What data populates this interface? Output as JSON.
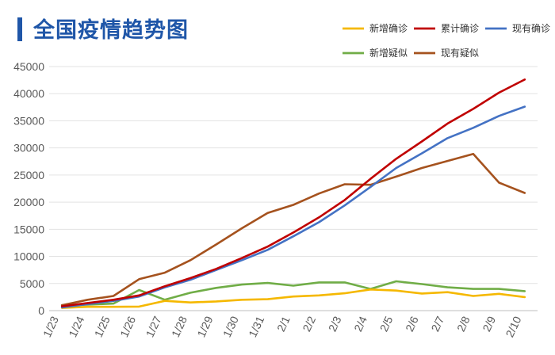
{
  "title": "全国疫情趋势图",
  "chart_data": {
    "type": "line",
    "title": "全国疫情趋势图",
    "categories": [
      "1/23",
      "1/24",
      "1/25",
      "1/26",
      "1/27",
      "1/28",
      "1/29",
      "1/30",
      "1/31",
      "2/1",
      "2/2",
      "2/3",
      "2/4",
      "2/5",
      "2/6",
      "2/7",
      "2/8",
      "2/9",
      "2/10"
    ],
    "ylim": [
      0,
      45000
    ],
    "yticks": [
      0,
      5000,
      10000,
      15000,
      20000,
      25000,
      30000,
      35000,
      40000,
      45000
    ],
    "grid": "horizontal",
    "legend_position": "top-right",
    "series": [
      {
        "name": "新增确诊",
        "color": "#f5b800",
        "values": [
          500,
          700,
          700,
          750,
          1800,
          1500,
          1700,
          2000,
          2100,
          2600,
          2800,
          3200,
          3900,
          3700,
          3150,
          3400,
          2700,
          3100,
          2500
        ]
      },
      {
        "name": "累计确诊",
        "color": "#c00000",
        "values": [
          800,
          1400,
          2000,
          2800,
          4500,
          6000,
          7700,
          9700,
          11800,
          14400,
          17200,
          20400,
          24300,
          28000,
          31200,
          34500,
          37200,
          40200,
          42600
        ]
      },
      {
        "name": "现有确诊",
        "color": "#4472c4",
        "values": [
          600,
          1200,
          1800,
          2600,
          4300,
          5700,
          7500,
          9300,
          11200,
          13700,
          16300,
          19400,
          22800,
          26300,
          29000,
          31800,
          33700,
          35900,
          37600
        ]
      },
      {
        "name": "新增疑似",
        "color": "#70ad47",
        "values": [
          1000,
          1100,
          1300,
          3800,
          2000,
          3300,
          4200,
          4800,
          5100,
          4600,
          5200,
          5200,
          4000,
          5400,
          4900,
          4300,
          4000,
          4000,
          3600
        ]
      },
      {
        "name": "现有疑似",
        "color": "#a5521e",
        "values": [
          1000,
          2000,
          2700,
          5800,
          7000,
          9300,
          12200,
          15200,
          18000,
          19500,
          21600,
          23300,
          23200,
          24700,
          26300,
          27600,
          28900,
          23600,
          21700
        ]
      }
    ]
  }
}
